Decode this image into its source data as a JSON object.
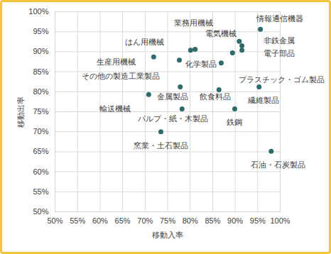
{
  "chart_data": {
    "type": "scatter",
    "x_label": "移動入率",
    "y_label": "移動出率",
    "color": "#2f6b6b",
    "grid": true,
    "xlim": [
      50,
      100
    ],
    "ylim": [
      50,
      100
    ],
    "xticks": [
      {
        "value": 50,
        "label": "50%"
      },
      {
        "value": 55,
        "label": "55%"
      },
      {
        "value": 60,
        "label": "60%"
      },
      {
        "value": 65,
        "label": "65%"
      },
      {
        "value": 70,
        "label": "70%"
      },
      {
        "value": 75,
        "label": "75%"
      },
      {
        "value": 80,
        "label": "80%"
      },
      {
        "value": 85,
        "label": "85%"
      },
      {
        "value": 90,
        "label": "90%"
      },
      {
        "value": 95,
        "label": "95%"
      },
      {
        "value": 100,
        "label": "100%"
      }
    ],
    "yticks": [
      {
        "value": 50,
        "label": "50%"
      },
      {
        "value": 55,
        "label": "55%"
      },
      {
        "value": 60,
        "label": "60%"
      },
      {
        "value": 65,
        "label": "65%"
      },
      {
        "value": 70,
        "label": "70%"
      },
      {
        "value": 75,
        "label": "75%"
      },
      {
        "value": 80,
        "label": "80%"
      },
      {
        "value": 85,
        "label": "85%"
      },
      {
        "value": 90,
        "label": "90%"
      },
      {
        "value": 95,
        "label": "95%"
      },
      {
        "value": 100,
        "label": "100%"
      }
    ],
    "points": [
      {
        "label": "情報通信機器",
        "x": 95.6,
        "y": 95.6
      },
      {
        "label": "電気機械",
        "x": 90.9,
        "y": 92.6
      },
      {
        "label": "非鉄金属",
        "x": 91.5,
        "y": 91.5
      },
      {
        "label": "電子部品",
        "x": 91.5,
        "y": 90.4
      },
      {
        "label": "業務用機械",
        "x": 81.1,
        "y": 90.6
      },
      {
        "label": "はん用機械",
        "x": 80.1,
        "y": 90.4
      },
      {
        "label": "生産用機械",
        "x": 71.9,
        "y": 88.7
      },
      {
        "label": "その他の製造工業製品",
        "x": 77.6,
        "y": 87.9
      },
      {
        "label": "化学製品",
        "x": 86.9,
        "y": 87.2
      },
      {
        "label": "プラスチック・ゴム製品",
        "x": 89.4,
        "y": 89.7
      },
      {
        "label": "金属製品",
        "x": 77.8,
        "y": 81.2
      },
      {
        "label": "飲食料品",
        "x": 86.4,
        "y": 80.5
      },
      {
        "label": "繊維製品",
        "x": 95.3,
        "y": 81.2
      },
      {
        "label": "輸送機械",
        "x": 70.8,
        "y": 79.3
      },
      {
        "label": "パルプ・紙・木製品",
        "x": 78.2,
        "y": 75.7
      },
      {
        "label": "鉄鋼",
        "x": 89.9,
        "y": 75.7
      },
      {
        "label": "窯業・土石製品",
        "x": 73.5,
        "y": 70.0
      },
      {
        "label": "石油・石炭製品",
        "x": 98.0,
        "y": 65.1
      }
    ]
  }
}
